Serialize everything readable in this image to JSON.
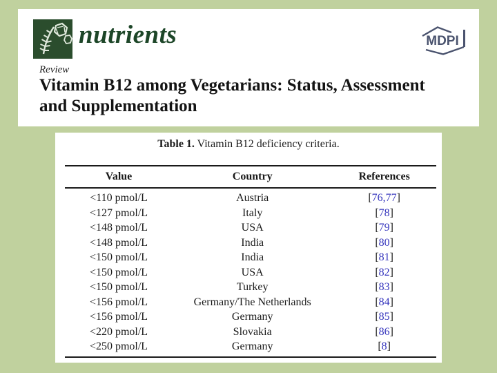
{
  "colors": {
    "page_background": "#c0d19e",
    "logo_square_green": "#2b4d2d",
    "journal_text_green": "#1d4628",
    "mdpi_slate": "#4a536e",
    "reference_blue": "#3434bd",
    "body_text": "#1a1a1a"
  },
  "icons": {
    "journal_logo": "nutrients-leaf-hexagon-logo",
    "publisher_logo": "mdpi-open-hexagon-logo"
  },
  "header_panel": {
    "journal_name": "nutrients",
    "publisher_label": "MDPI",
    "article_type": "Review",
    "title": "Vitamin B12 among Vegetarians: Status, Assessment and Supplementation"
  },
  "table_panel": {
    "caption_label": "Table 1.",
    "caption_text": "Vitamin B12 deficiency criteria.",
    "columns": [
      "Value",
      "Country",
      "References"
    ],
    "rows": [
      {
        "value": "<110 pmol/L",
        "country": "Austria",
        "references": "76,77"
      },
      {
        "value": "<127 pmol/L",
        "country": "Italy",
        "references": "78"
      },
      {
        "value": "<148 pmol/L",
        "country": "USA",
        "references": "79"
      },
      {
        "value": "<148 pmol/L",
        "country": "India",
        "references": "80"
      },
      {
        "value": "<150 pmol/L",
        "country": "India",
        "references": "81"
      },
      {
        "value": "<150 pmol/L",
        "country": "USA",
        "references": "82"
      },
      {
        "value": "<150 pmol/L",
        "country": "Turkey",
        "references": "83"
      },
      {
        "value": "<156 pmol/L",
        "country": "Germany/The Netherlands",
        "references": "84"
      },
      {
        "value": "<156 pmol/L",
        "country": "Germany",
        "references": "85"
      },
      {
        "value": "<220 pmol/L",
        "country": "Slovakia",
        "references": "86"
      },
      {
        "value": "<250 pmol/L",
        "country": "Germany",
        "references": "8"
      }
    ]
  }
}
